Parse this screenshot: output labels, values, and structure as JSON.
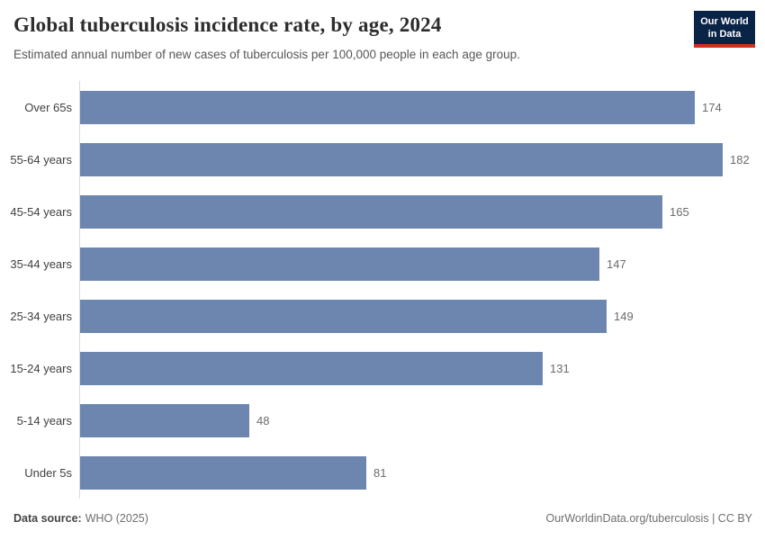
{
  "header": {
    "title": "Global tuberculosis incidence rate, by age, 2024",
    "subtitle": "Estimated annual number of new cases of tuberculosis per 100,000 people in each age group.",
    "logo": {
      "line1": "Our World",
      "line2": "in Data"
    }
  },
  "chart_data": {
    "type": "bar",
    "orientation": "horizontal",
    "title": "Global tuberculosis incidence rate, by age, 2024",
    "categories": [
      "Over 65s",
      "55-64 years",
      "45-54 years",
      "35-44 years",
      "25-34 years",
      "15-24 years",
      "5-14 years",
      "Under 5s"
    ],
    "values": [
      174,
      182,
      165,
      147,
      149,
      131,
      48,
      81
    ],
    "xlabel": "",
    "ylabel": "",
    "xlim": [
      0,
      182
    ],
    "grid": false,
    "legend": false,
    "value_labels": true,
    "bar_color": "#6d86af"
  },
  "footer": {
    "source_label": "Data source:",
    "source_value": "WHO (2025)",
    "attribution_link": "OurWorldinData.org/tuberculosis",
    "attribution_suffix": " | CC BY"
  },
  "colors": {
    "bar": "#6d86af",
    "logo_bg": "#0a2447",
    "logo_accent": "#d0311d",
    "axis_line": "#d9d9d9",
    "title_text": "#2d2d2d",
    "subtitle_text": "#575757",
    "value_text": "#6b6b6b"
  }
}
